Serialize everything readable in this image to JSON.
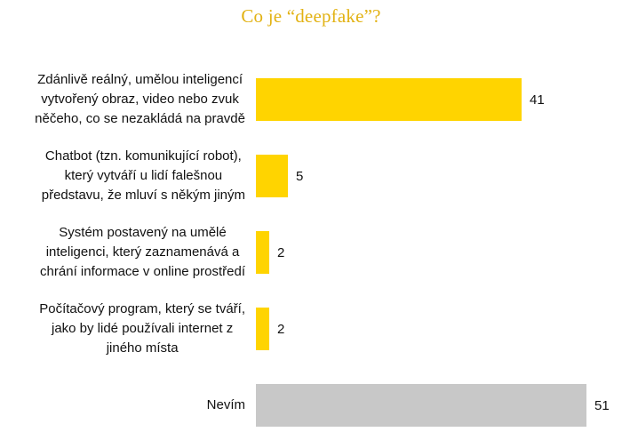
{
  "title": "Co je “deepfake”?",
  "chart_data": {
    "type": "bar",
    "orientation": "horizontal",
    "title": "Co je “deepfake”?",
    "categories": [
      "Zdánlivě reálný, umělou inteligencí\nvytvořený obraz, video nebo zvuk\nněčeho, co se nezakládá na pravdě",
      "Chatbot (tzn. komunikující robot),\nkterý vytváří u lidí falešnou\npředstavu, že mluví s někým jiným",
      "Systém postavený na umělé\ninteligenci, který zaznamenává a\nchrání informace v online prostředí",
      "Počítačový program, který se tváří,\njako by lidé používali internet z\njiného místa",
      "Nevím"
    ],
    "values": [
      41,
      5,
      2,
      2,
      51
    ],
    "value_labels": [
      "41",
      "5",
      "2",
      "2",
      "51"
    ],
    "bar_colors": [
      "#FFD400",
      "#FFD400",
      "#FFD400",
      "#FFD400",
      "#C8C8C8"
    ],
    "xlim": [
      0,
      52
    ],
    "show_value_labels": true,
    "legend": "none",
    "grid": false,
    "colors": {
      "title": "#E2B213",
      "label_text": "#111111",
      "background": "#FFFFFF"
    }
  }
}
